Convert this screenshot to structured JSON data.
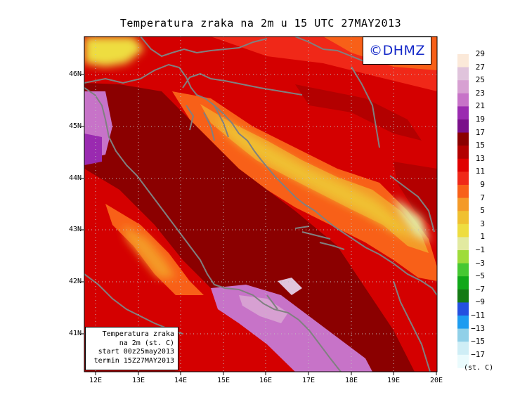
{
  "title": "Temperatura zraka na 2m u 15 UTC 27MAY2013",
  "logo": "©DHMZ",
  "info_box": [
    "Temperatura zraka",
    "na 2m (st. C)",
    "start 00z25may2013",
    "termin 15Z27MAY2013"
  ],
  "lat_labels": [
    "46N",
    "45N",
    "44N",
    "43N",
    "42N",
    "41N"
  ],
  "lon_labels": [
    "12E",
    "13E",
    "14E",
    "15E",
    "16E",
    "17E",
    "18E",
    "19E",
    "20E"
  ],
  "legend": {
    "units": "(st. C)",
    "levels": [
      "29",
      "27",
      "25",
      "23",
      "21",
      "19",
      "17",
      "15",
      "13",
      "11",
      "9",
      "7",
      "5",
      "3",
      "1",
      "−1",
      "−3",
      "−5",
      "−7",
      "−9",
      "−11",
      "−13",
      "−15",
      "−17"
    ],
    "colors": [
      "#fbe9d9",
      "#e0c4dc",
      "#d7a0d2",
      "#c773c8",
      "#9a2ab0",
      "#7a0f8a",
      "#8b0000",
      "#b30000",
      "#e00000",
      "#f02818",
      "#f86018",
      "#f49a28",
      "#f0c030",
      "#eedd40",
      "#e2eaa0",
      "#9edc3a",
      "#46c832",
      "#10a818",
      "#147a14",
      "#2450e0",
      "#1e9cf0",
      "#90d0e8",
      "#cfeef6",
      "#eafbfd"
    ]
  },
  "map": {
    "extent": {
      "lon": [
        11.75,
        20.0
      ],
      "lat": [
        40.3,
        46.75
      ]
    },
    "sea_color": "#8b0000",
    "coast_color": "#808080"
  }
}
